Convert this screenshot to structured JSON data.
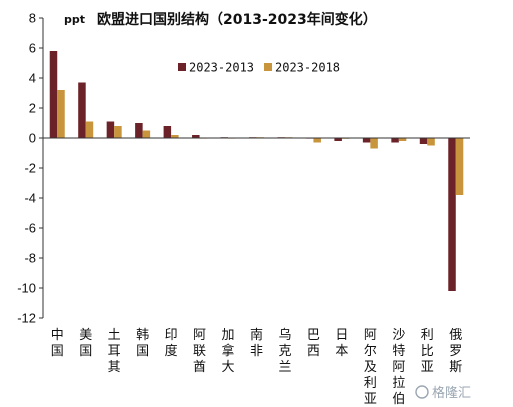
{
  "watermark": "格隆汇",
  "chart_data": {
    "type": "bar",
    "title": "欧盟进口国别结构（2013-2023年间变化）",
    "unit_label": "ppt",
    "ylim": [
      -12,
      8
    ],
    "yticks": [
      -12,
      -10,
      -8,
      -6,
      -4,
      -2,
      0,
      2,
      4,
      6,
      8
    ],
    "legend_position": "top-center",
    "categories": [
      "中国",
      "美国",
      "土耳其",
      "韩国",
      "印度",
      "阿联酋",
      "加拿大",
      "南非",
      "乌克兰",
      "巴西",
      "日本",
      "阿尔及利亚",
      "沙特阿拉伯",
      "利比亚",
      "俄罗斯"
    ],
    "series": [
      {
        "name": "2023-2013",
        "color": "#6b2228",
        "values": [
          5.8,
          3.7,
          1.1,
          1.0,
          0.8,
          0.2,
          0.05,
          0.05,
          0.05,
          0.0,
          -0.2,
          -0.3,
          -0.3,
          -0.4,
          -10.2
        ]
      },
      {
        "name": "2023-2018",
        "color": "#c8943c",
        "values": [
          3.2,
          1.1,
          0.8,
          0.5,
          0.2,
          0.0,
          0.0,
          0.05,
          0.05,
          -0.3,
          -0.05,
          -0.7,
          -0.2,
          -0.5,
          -3.8
        ]
      }
    ]
  }
}
